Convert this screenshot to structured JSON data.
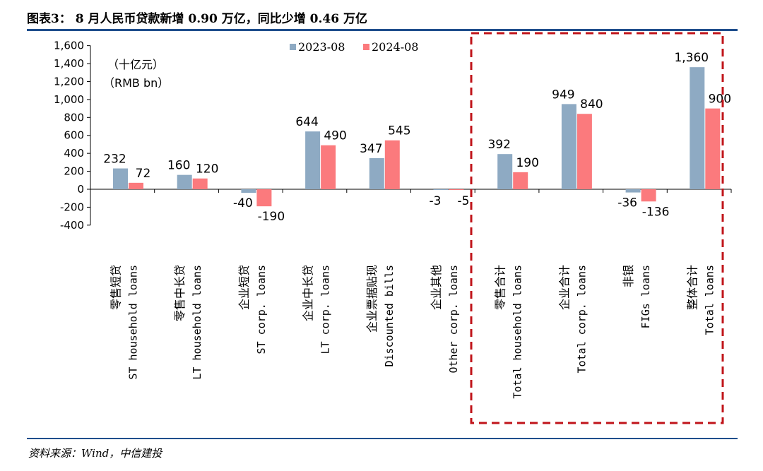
{
  "header": {
    "title": "图表3：  8 月人民币贷款新增 0.90 万亿，同比少增 0.46 万亿"
  },
  "footer": {
    "source": "资料来源：Wind，中信建投"
  },
  "colors": {
    "series_2023": "#8eaac3",
    "series_2024": "#fb7a7d",
    "rule": "#1f4e8c",
    "highlight_box": "#c0141a"
  },
  "chart_data": {
    "type": "bar",
    "unit_label_cn": "（十亿元）",
    "unit_label_en": "（RMB bn）",
    "categories": [
      {
        "cn": "零售短贷",
        "en": "ST household loans"
      },
      {
        "cn": "零售中长贷",
        "en": "LT household loans"
      },
      {
        "cn": "企业短贷",
        "en": "ST corp. loans"
      },
      {
        "cn": "企业中长贷",
        "en": "LT corp. loans"
      },
      {
        "cn": "企业票据贴现",
        "en": "Discounted bills"
      },
      {
        "cn": "企业其他",
        "en": "Other corp. loans"
      },
      {
        "cn": "零售合计",
        "en": "Total household loans"
      },
      {
        "cn": "企业合计",
        "en": "Total corp. loans"
      },
      {
        "cn": "非银",
        "en": "FIGs loans"
      },
      {
        "cn": "整体合计",
        "en": "Total loans"
      }
    ],
    "series": [
      {
        "name": "2023-08",
        "values": [
          232,
          160,
          -40,
          644,
          347,
          -3,
          392,
          949,
          -36,
          1360
        ],
        "labels": [
          "232",
          "160",
          "-40",
          "644",
          "347",
          "-3",
          "392",
          "949",
          "-36",
          "1,360"
        ]
      },
      {
        "name": "2024-08",
        "values": [
          72,
          120,
          -190,
          490,
          545,
          -5,
          190,
          840,
          -136,
          900
        ],
        "labels": [
          "72",
          "120",
          "-190",
          "490",
          "545",
          "-5",
          "190",
          "840",
          "-136",
          "900"
        ]
      }
    ],
    "yticks": [
      "1,600",
      "1,400",
      "1,200",
      "1,000",
      "800",
      "600",
      "400",
      "200",
      "0",
      "-200",
      "-400"
    ],
    "ylim": [
      -400,
      1600
    ],
    "legend_position": "top-center",
    "highlighted_categories": [
      "零售合计",
      "企业合计",
      "非银",
      "整体合计"
    ]
  }
}
